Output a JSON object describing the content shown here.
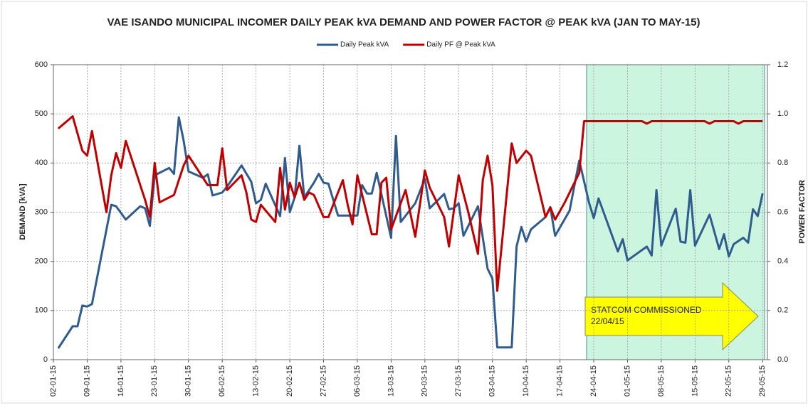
{
  "chart_data": {
    "type": "line",
    "title": "VAE ISANDO MUNICIPAL INCOMER DAILY PEAK kVA DEMAND AND POWER FACTOR @ PEAK kVA (JAN TO MAY-15)",
    "y_label": "DEMAND [kVA]",
    "y2_label": "POWER FACTOR",
    "annotations": [
      "STATCOM COMMISSIONED",
      "22/04/15"
    ],
    "xlim": [
      "02-01-15",
      "30-05-15"
    ],
    "xticks": [
      "02-01-15",
      "09-01-15",
      "16-01-15",
      "23-01-15",
      "30-01-15",
      "06-02-15",
      "13-02-15",
      "20-02-15",
      "27-02-15",
      "06-03-15",
      "13-03-15",
      "20-03-15",
      "27-03-15",
      "03-04-15",
      "10-04-15",
      "17-04-15",
      "24-04-15",
      "01-05-15",
      "08-05-15",
      "15-05-15",
      "22-05-15",
      "29-05-15"
    ],
    "ylim": [
      0,
      600
    ],
    "yticks": [
      0,
      100,
      200,
      300,
      400,
      500,
      600
    ],
    "y2lim": [
      0,
      1.2
    ],
    "y2ticks": [
      {
        "value": 0,
        "label": "0.0"
      },
      0.2,
      0.4,
      0.6,
      0.8,
      {
        "value": 1,
        "label": "1.0"
      },
      1.2
    ],
    "grid": true,
    "legend": "top",
    "series": [
      {
        "name": "Daily Peak kVA",
        "color": "#2f5b8e",
        "x": [
          "03-01-15",
          "06-01-15",
          "07-01-15",
          "08-01-15",
          "09-01-15",
          "10-01-15",
          "14-01-15",
          "15-01-15",
          "17-01-15",
          "20-01-15",
          "21-01-15",
          "22-01-15",
          "23-01-15",
          "26-01-15",
          "27-01-15",
          "28-01-15",
          "29-01-15",
          "30-01-15",
          "02-02-15",
          "03-02-15",
          "04-02-15",
          "06-02-15",
          "07-02-15",
          "10-02-15",
          "12-02-15",
          "13-02-15",
          "14-02-15",
          "15-02-15",
          "18-02-15",
          "19-02-15",
          "20-02-15",
          "21-02-15",
          "22-02-15",
          "23-02-15",
          "25-02-15",
          "26-02-15",
          "27-02-15",
          "28-02-15",
          "02-03-15",
          "06-03-15",
          "07-03-15",
          "08-03-15",
          "09-03-15",
          "10-03-15",
          "13-03-15",
          "14-03-15",
          "15-03-15",
          "18-03-15",
          "20-03-15",
          "21-03-15",
          "24-03-15",
          "25-03-15",
          "26-03-15",
          "27-03-15",
          "28-03-15",
          "31-03-15",
          "02-04-15",
          "03-04-15",
          "04-04-15",
          "07-04-15",
          "08-04-15",
          "09-04-15",
          "10-04-15",
          "11-04-15",
          "14-04-15",
          "15-04-15",
          "16-04-15",
          "19-04-15",
          "21-04-15",
          "23-04-15",
          "24-04-15",
          "25-04-15",
          "29-04-15",
          "30-04-15",
          "01-05-15",
          "05-05-15",
          "06-05-15",
          "07-05-15",
          "08-05-15",
          "11-05-15",
          "12-05-15",
          "13-05-15",
          "14-05-15",
          "15-05-15",
          "18-05-15",
          "20-05-15",
          "21-05-15",
          "22-05-15",
          "23-05-15",
          "25-05-15",
          "26-05-15",
          "27-05-15",
          "28-05-15",
          "29-05-15"
        ],
        "values": [
          23,
          68,
          68,
          110,
          108,
          113,
          315,
          312,
          285,
          312,
          308,
          272,
          375,
          390,
          378,
          493,
          445,
          383,
          370,
          377,
          334,
          340,
          352,
          395,
          362,
          318,
          325,
          358,
          292,
          410,
          300,
          330,
          435,
          330,
          360,
          378,
          360,
          358,
          293,
          293,
          355,
          338,
          338,
          380,
          248,
          455,
          280,
          318,
          368,
          308,
          337,
          306,
          308,
          318,
          252,
          312,
          185,
          165,
          25,
          25,
          230,
          270,
          240,
          265,
          290,
          310,
          252,
          303,
          405,
          320,
          288,
          328,
          220,
          245,
          202,
          230,
          212,
          345,
          232,
          307,
          240,
          238,
          345,
          232,
          295,
          225,
          255,
          210,
          235,
          248,
          238,
          306,
          292,
          338
        ]
      },
      {
        "name": "Daily PF @ Peak kVA",
        "color": "#c00000",
        "axis": "y2",
        "x": [
          "03-01-15",
          "06-01-15",
          "08-01-15",
          "09-01-15",
          "10-01-15",
          "13-01-15",
          "14-01-15",
          "15-01-15",
          "16-01-15",
          "17-01-15",
          "21-01-15",
          "22-01-15",
          "23-01-15",
          "24-01-15",
          "27-01-15",
          "29-01-15",
          "30-01-15",
          "03-02-15",
          "05-02-15",
          "06-02-15",
          "07-02-15",
          "10-02-15",
          "11-02-15",
          "12-02-15",
          "13-02-15",
          "14-02-15",
          "17-02-15",
          "18-02-15",
          "19-02-15",
          "20-02-15",
          "21-02-15",
          "22-02-15",
          "23-02-15",
          "24-02-15",
          "25-02-15",
          "27-02-15",
          "28-02-15",
          "03-03-15",
          "04-03-15",
          "05-03-15",
          "06-03-15",
          "09-03-15",
          "10-03-15",
          "11-03-15",
          "12-03-15",
          "13-03-15",
          "16-03-15",
          "18-03-15",
          "20-03-15",
          "21-03-15",
          "24-03-15",
          "25-03-15",
          "27-03-15",
          "29-03-15",
          "31-03-15",
          "01-04-15",
          "02-04-15",
          "03-04-15",
          "04-04-15",
          "07-04-15",
          "08-04-15",
          "10-04-15",
          "11-04-15",
          "14-04-15",
          "15-04-15",
          "16-04-15",
          "18-04-15",
          "21-04-15",
          "22-04-15",
          "04-05-15",
          "05-05-15",
          "06-05-15",
          "17-05-15",
          "18-05-15",
          "19-05-15",
          "23-05-15",
          "24-05-15",
          "25-05-15",
          "29-05-15"
        ],
        "values": [
          0.94,
          0.99,
          0.85,
          0.83,
          0.93,
          0.6,
          0.75,
          0.84,
          0.78,
          0.89,
          0.65,
          0.58,
          0.8,
          0.64,
          0.67,
          0.79,
          0.83,
          0.71,
          0.71,
          0.86,
          0.69,
          0.75,
          0.68,
          0.57,
          0.56,
          0.63,
          0.56,
          0.78,
          0.61,
          0.72,
          0.66,
          0.72,
          0.65,
          0.68,
          0.67,
          0.58,
          0.58,
          0.73,
          0.63,
          0.55,
          0.75,
          0.51,
          0.51,
          0.72,
          0.74,
          0.53,
          0.69,
          0.5,
          0.77,
          0.7,
          0.58,
          0.46,
          0.75,
          0.6,
          0.43,
          0.73,
          0.83,
          0.71,
          0.28,
          0.88,
          0.8,
          0.85,
          0.83,
          0.58,
          0.62,
          0.57,
          0.64,
          0.76,
          0.97,
          0.97,
          0.96,
          0.97,
          0.97,
          0.96,
          0.97,
          0.97,
          0.96,
          0.97,
          0.97
        ]
      }
    ]
  }
}
